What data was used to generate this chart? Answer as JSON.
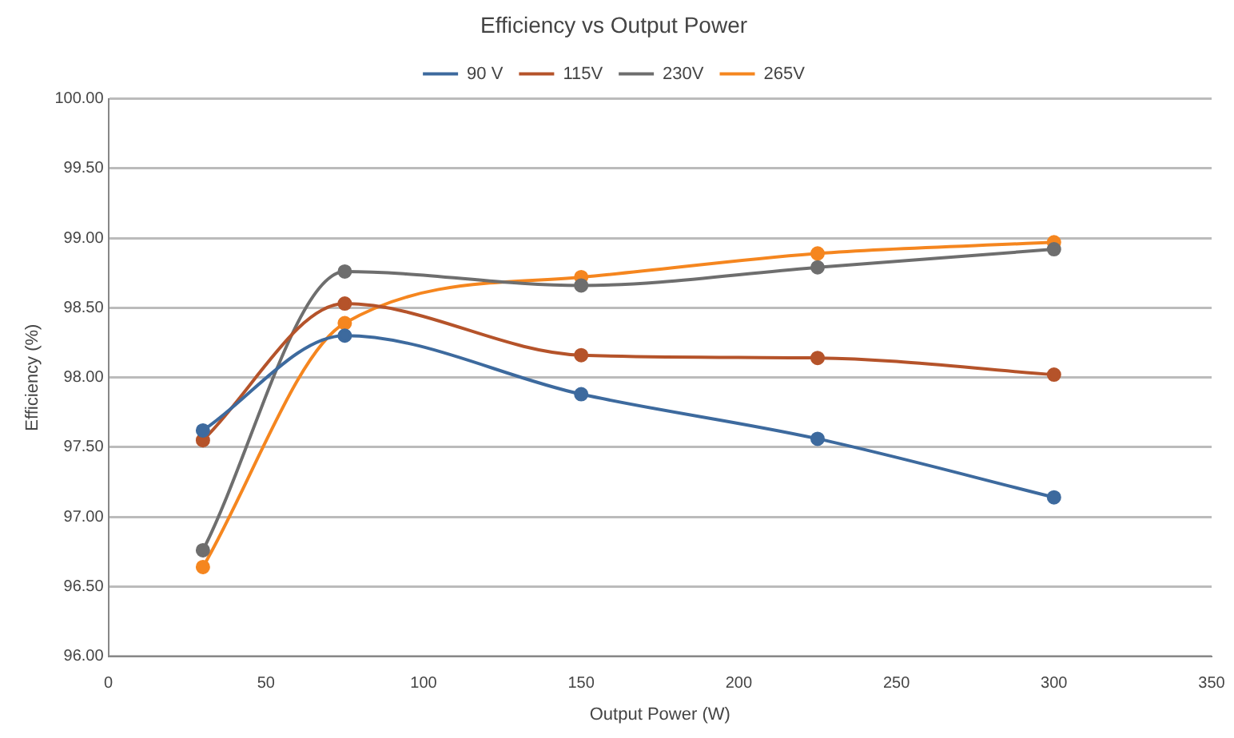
{
  "chart_data": {
    "type": "line",
    "title": "Efficiency vs Output Power",
    "xlabel": "Output Power (W)",
    "ylabel": "Efficiency (%)",
    "x": [
      30,
      75,
      150,
      225,
      300
    ],
    "series": [
      {
        "name": "90 V",
        "color": "#3d6a9e",
        "values": [
          97.62,
          98.3,
          97.88,
          97.56,
          97.14
        ]
      },
      {
        "name": "115V",
        "color": "#b5532a",
        "values": [
          97.55,
          98.53,
          98.16,
          98.14,
          98.02
        ]
      },
      {
        "name": "230V",
        "color": "#6e6e6e",
        "values": [
          96.76,
          98.76,
          98.66,
          98.79,
          98.92
        ]
      },
      {
        "name": "265V",
        "color": "#f5861f",
        "values": [
          96.64,
          98.39,
          98.72,
          98.89,
          98.97
        ]
      }
    ],
    "xlim": [
      0,
      350
    ],
    "xticks": [
      0,
      50,
      100,
      150,
      200,
      250,
      300,
      350
    ],
    "ylim": [
      96,
      100
    ],
    "yticks": [
      {
        "value": 96,
        "label": "96.00"
      },
      {
        "value": 96.5,
        "label": "96.50"
      },
      {
        "value": 97,
        "label": "97.00"
      },
      {
        "value": 97.5,
        "label": "97.50"
      },
      {
        "value": 98,
        "label": "98.00"
      },
      {
        "value": 98.5,
        "label": "98.50"
      },
      {
        "value": 99,
        "label": "99.00"
      },
      {
        "value": 99.5,
        "label": "99.50"
      },
      {
        "value": 100,
        "label": "100.00"
      }
    ],
    "grid": "y",
    "legend": "top",
    "marker": "circle",
    "line_style": "solid"
  }
}
